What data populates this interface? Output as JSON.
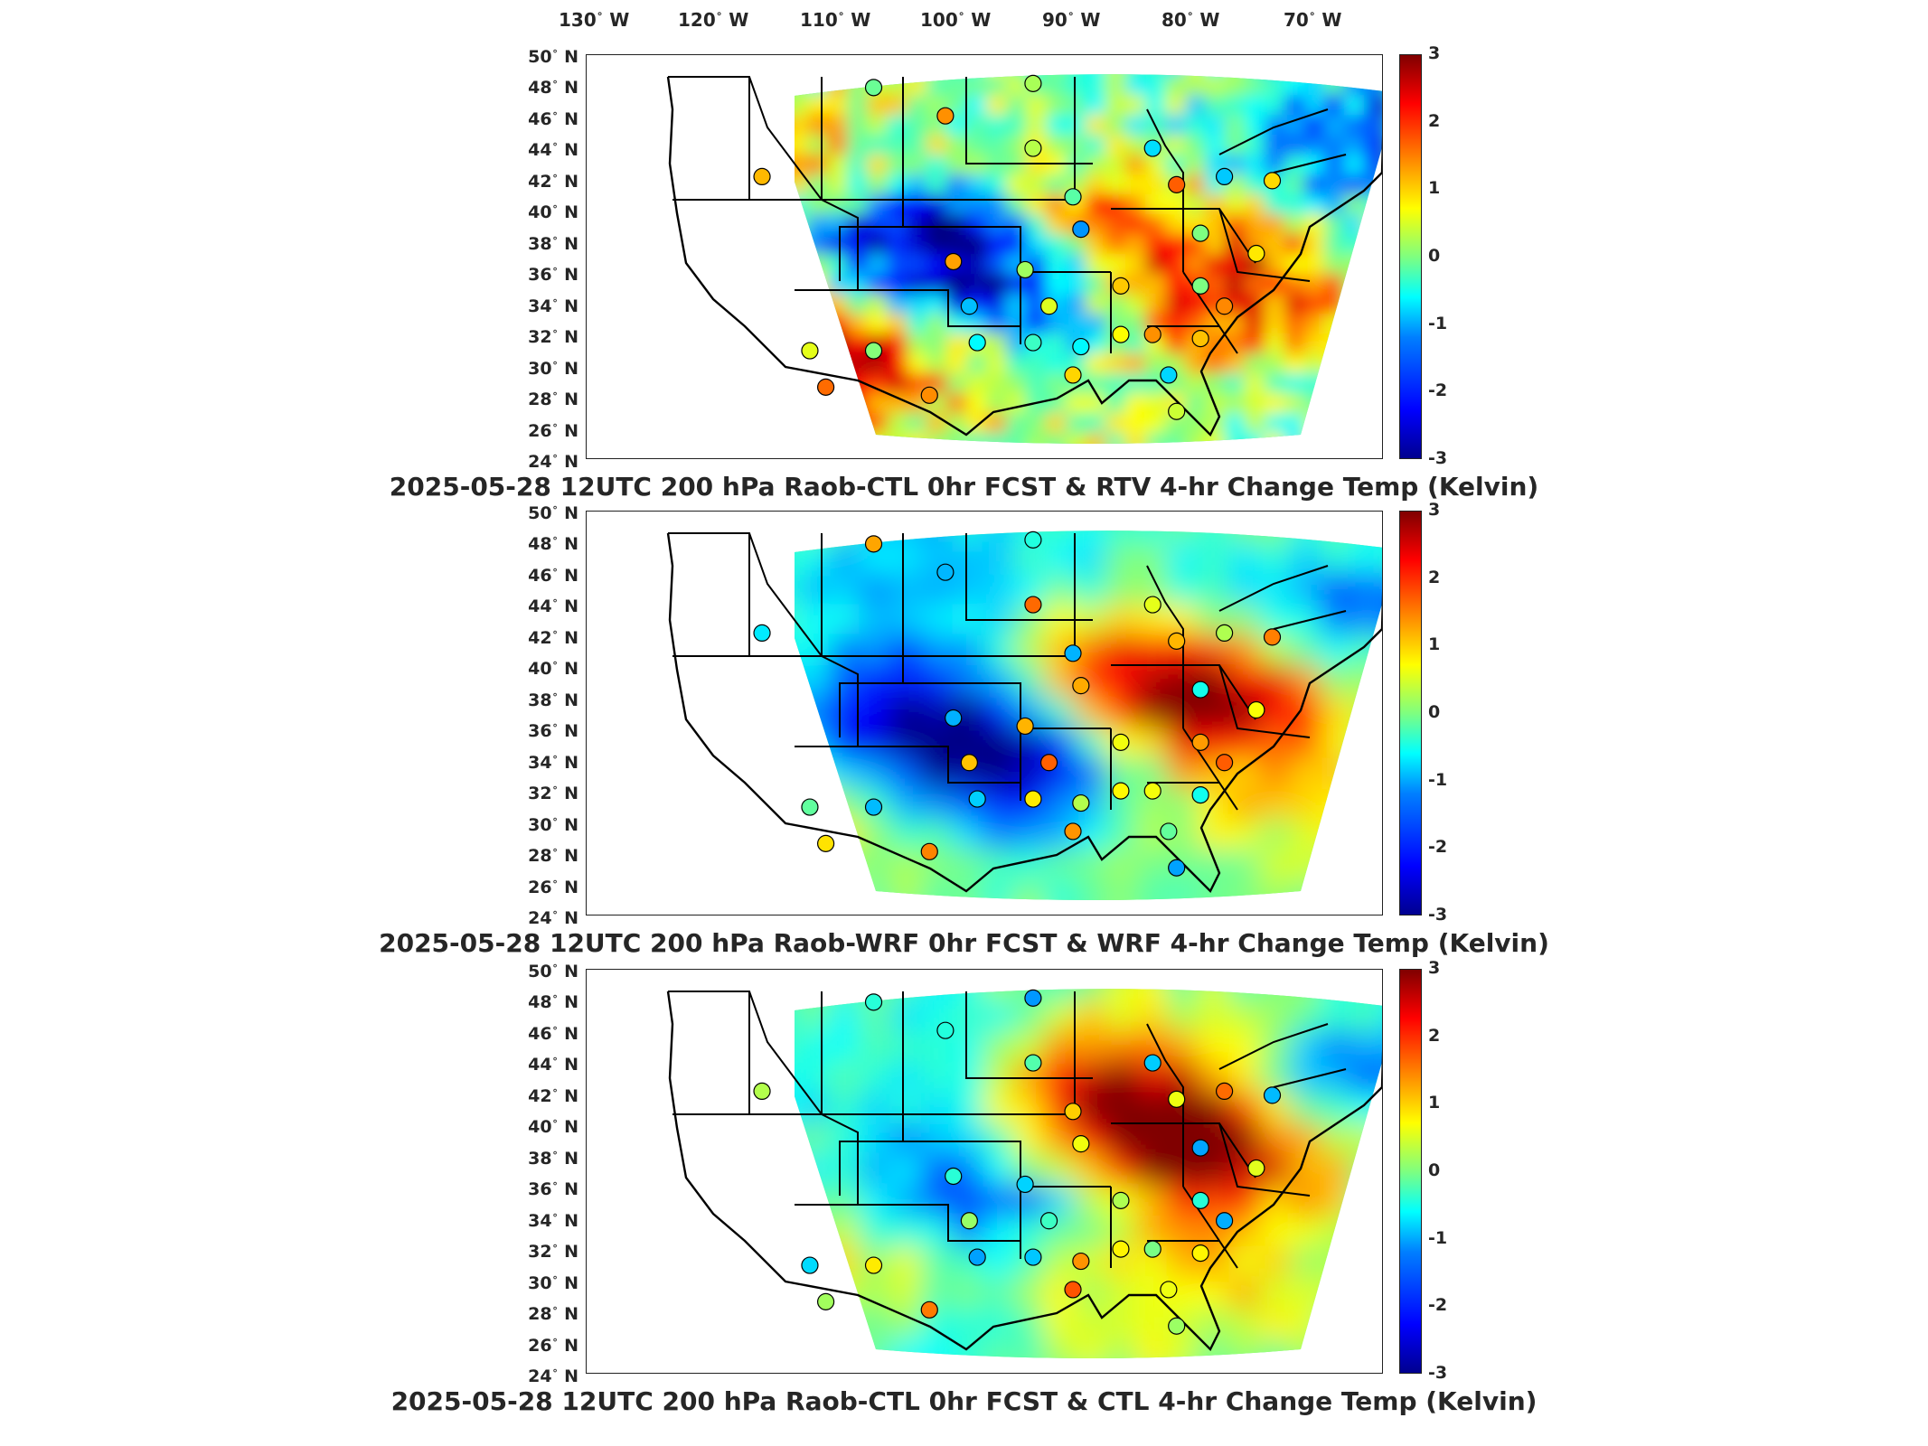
{
  "longitude_labels": [
    {
      "deg": "130",
      "hemi": "W"
    },
    {
      "deg": "120",
      "hemi": "W"
    },
    {
      "deg": "110",
      "hemi": "W"
    },
    {
      "deg": "100",
      "hemi": "W"
    },
    {
      "deg": "90",
      "hemi": "W"
    },
    {
      "deg": "80",
      "hemi": "W"
    },
    {
      "deg": "70",
      "hemi": "W"
    }
  ],
  "latitude_labels": [
    {
      "deg": "50",
      "hemi": "N"
    },
    {
      "deg": "48",
      "hemi": "N"
    },
    {
      "deg": "46",
      "hemi": "N"
    },
    {
      "deg": "44",
      "hemi": "N"
    },
    {
      "deg": "42",
      "hemi": "N"
    },
    {
      "deg": "40",
      "hemi": "N"
    },
    {
      "deg": "38",
      "hemi": "N"
    },
    {
      "deg": "36",
      "hemi": "N"
    },
    {
      "deg": "34",
      "hemi": "N"
    },
    {
      "deg": "32",
      "hemi": "N"
    },
    {
      "deg": "30",
      "hemi": "N"
    },
    {
      "deg": "28",
      "hemi": "N"
    },
    {
      "deg": "26",
      "hemi": "N"
    },
    {
      "deg": "24",
      "hemi": "N"
    }
  ],
  "colorbar": {
    "ticks": [
      "3",
      "2",
      "1",
      "0",
      "-1",
      "-2",
      "-3"
    ],
    "colors": [
      "#00008f",
      "#0000ff",
      "#007fff",
      "#00ffff",
      "#7fff7f",
      "#ffff00",
      "#ff7f00",
      "#ff0000",
      "#800000"
    ]
  },
  "panels": [
    {
      "title": "2025-05-28 12UTC 200 hPa Raob-CTL 0hr FCST & RTV 4-hr Change Temp (Kelvin)"
    },
    {
      "title": "2025-05-28 12UTC 200 hPa Raob-WRF 0hr FCST & WRF 4-hr Change Temp (Kelvin)"
    },
    {
      "title": "2025-05-28 12UTC 200 hPa Raob-CTL 0hr FCST & CTL 4-hr Change Temp (Kelvin)"
    }
  ]
}
